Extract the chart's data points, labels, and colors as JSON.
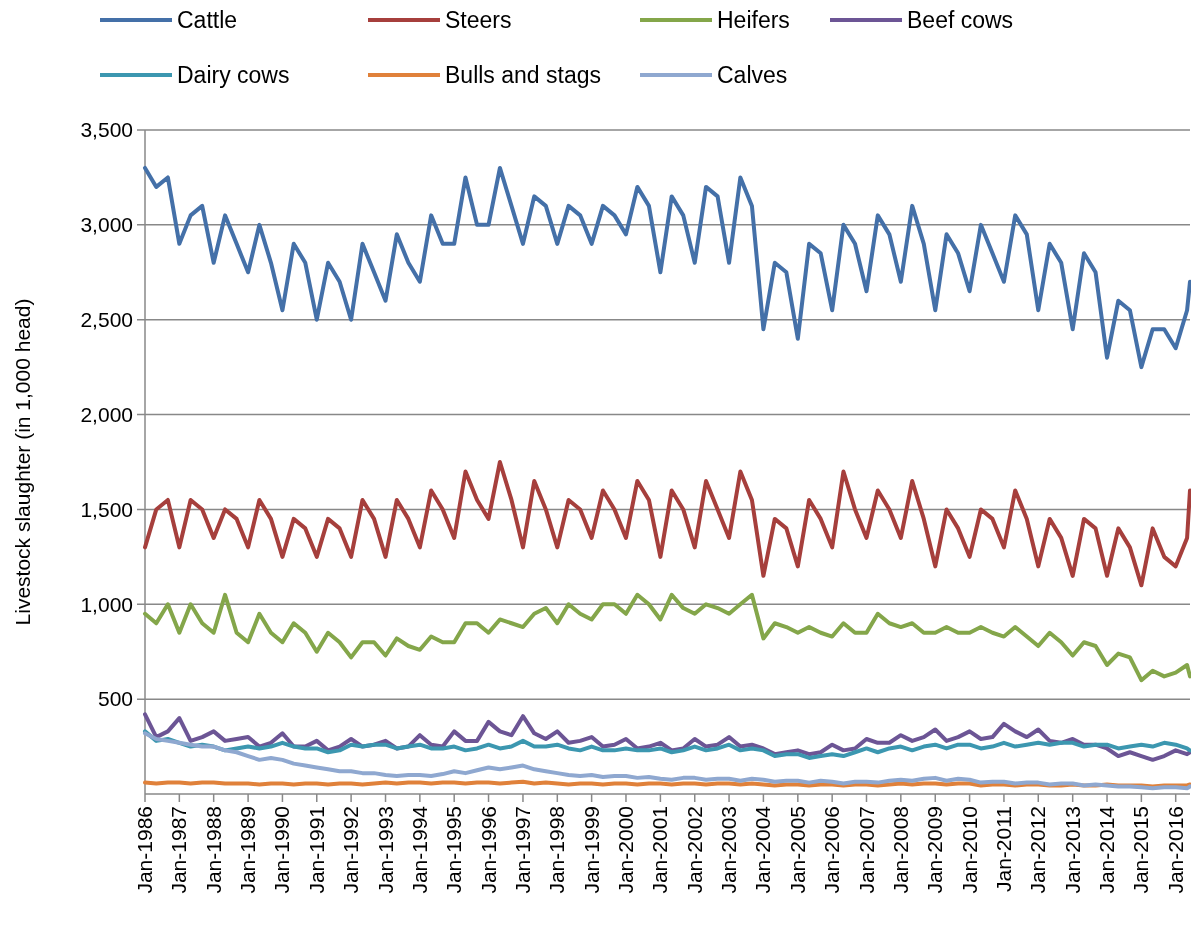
{
  "chart_data": {
    "type": "line",
    "ylabel": "Livestock slaughter (in 1,000 head)",
    "x": [
      "1986-01",
      "1986-05",
      "1986-09",
      "1987-01",
      "1987-05",
      "1987-09",
      "1988-01",
      "1988-05",
      "1988-09",
      "1989-01",
      "1989-05",
      "1989-09",
      "1990-01",
      "1990-05",
      "1990-09",
      "1991-01",
      "1991-05",
      "1991-09",
      "1992-01",
      "1992-05",
      "1992-09",
      "1993-01",
      "1993-05",
      "1993-09",
      "1994-01",
      "1994-05",
      "1994-09",
      "1995-01",
      "1995-05",
      "1995-09",
      "1996-01",
      "1996-05",
      "1996-09",
      "1997-01",
      "1997-05",
      "1997-09",
      "1998-01",
      "1998-05",
      "1998-09",
      "1999-01",
      "1999-05",
      "1999-09",
      "2000-01",
      "2000-05",
      "2000-09",
      "2001-01",
      "2001-05",
      "2001-09",
      "2002-01",
      "2002-05",
      "2002-09",
      "2003-01",
      "2003-05",
      "2003-09",
      "2004-01",
      "2004-05",
      "2004-09",
      "2005-01",
      "2005-05",
      "2005-09",
      "2006-01",
      "2006-05",
      "2006-09",
      "2007-01",
      "2007-05",
      "2007-09",
      "2008-01",
      "2008-05",
      "2008-09",
      "2009-01",
      "2009-05",
      "2009-09",
      "2010-01",
      "2010-05",
      "2010-09",
      "2011-01",
      "2011-05",
      "2011-09",
      "2012-01",
      "2012-05",
      "2012-09",
      "2013-01",
      "2013-05",
      "2013-09",
      "2014-01",
      "2014-05",
      "2014-09",
      "2015-01",
      "2015-05",
      "2015-09",
      "2016-01",
      "2016-05",
      "2016-06"
    ],
    "series": [
      {
        "name": "Cattle",
        "color": "#4470a8",
        "values": [
          3300,
          3200,
          3250,
          2900,
          3050,
          3100,
          2800,
          3050,
          2900,
          2750,
          3000,
          2800,
          2550,
          2900,
          2800,
          2500,
          2800,
          2700,
          2500,
          2900,
          2750,
          2600,
          2950,
          2800,
          2700,
          3050,
          2900,
          2900,
          3250,
          3000,
          3000,
          3300,
          3100,
          2900,
          3150,
          3100,
          2900,
          3100,
          3050,
          2900,
          3100,
          3050,
          2950,
          3200,
          3100,
          2750,
          3150,
          3050,
          2800,
          3200,
          3150,
          2800,
          3250,
          3100,
          2450,
          2800,
          2750,
          2400,
          2900,
          2850,
          2550,
          3000,
          2900,
          2650,
          3050,
          2950,
          2700,
          3100,
          2900,
          2550,
          2950,
          2850,
          2650,
          3000,
          2850,
          2700,
          3050,
          2950,
          2550,
          2900,
          2800,
          2450,
          2850,
          2750,
          2300,
          2600,
          2550,
          2250,
          2450,
          2450,
          2350,
          2550,
          2700
        ]
      },
      {
        "name": "Steers",
        "color": "#a63f3c",
        "values": [
          1300,
          1500,
          1550,
          1300,
          1550,
          1500,
          1350,
          1500,
          1450,
          1300,
          1550,
          1450,
          1250,
          1450,
          1400,
          1250,
          1450,
          1400,
          1250,
          1550,
          1450,
          1250,
          1550,
          1450,
          1300,
          1600,
          1500,
          1350,
          1700,
          1550,
          1450,
          1750,
          1550,
          1300,
          1650,
          1500,
          1300,
          1550,
          1500,
          1350,
          1600,
          1500,
          1350,
          1650,
          1550,
          1250,
          1600,
          1500,
          1300,
          1650,
          1500,
          1350,
          1700,
          1550,
          1150,
          1450,
          1400,
          1200,
          1550,
          1450,
          1300,
          1700,
          1500,
          1350,
          1600,
          1500,
          1350,
          1650,
          1450,
          1200,
          1500,
          1400,
          1250,
          1500,
          1450,
          1300,
          1600,
          1450,
          1200,
          1450,
          1350,
          1150,
          1450,
          1400,
          1150,
          1400,
          1300,
          1100,
          1400,
          1250,
          1200,
          1350,
          1600
        ]
      },
      {
        "name": "Heifers",
        "color": "#84a64a",
        "values": [
          950,
          900,
          1000,
          850,
          1000,
          900,
          850,
          1050,
          850,
          800,
          950,
          850,
          800,
          900,
          850,
          750,
          850,
          800,
          720,
          800,
          800,
          730,
          820,
          780,
          760,
          830,
          800,
          800,
          900,
          900,
          850,
          920,
          900,
          880,
          950,
          980,
          900,
          1000,
          950,
          920,
          1000,
          1000,
          950,
          1050,
          1000,
          920,
          1050,
          980,
          950,
          1000,
          980,
          950,
          1000,
          1050,
          820,
          900,
          880,
          850,
          880,
          850,
          830,
          900,
          850,
          850,
          950,
          900,
          880,
          900,
          850,
          850,
          880,
          850,
          850,
          880,
          850,
          830,
          880,
          830,
          780,
          850,
          800,
          730,
          800,
          780,
          680,
          740,
          720,
          600,
          650,
          620,
          640,
          680,
          620
        ]
      },
      {
        "name": "Beef cows",
        "color": "#6c5595",
        "values": [
          420,
          300,
          330,
          400,
          280,
          300,
          330,
          280,
          290,
          300,
          250,
          270,
          320,
          250,
          250,
          280,
          230,
          250,
          290,
          250,
          260,
          280,
          240,
          250,
          310,
          260,
          250,
          330,
          280,
          280,
          380,
          330,
          310,
          410,
          320,
          290,
          330,
          270,
          280,
          300,
          250,
          260,
          290,
          240,
          250,
          270,
          230,
          240,
          290,
          250,
          260,
          300,
          250,
          260,
          240,
          210,
          220,
          230,
          210,
          220,
          260,
          230,
          240,
          290,
          270,
          270,
          310,
          280,
          300,
          340,
          280,
          300,
          330,
          290,
          300,
          370,
          330,
          300,
          340,
          280,
          270,
          290,
          260,
          260,
          240,
          200,
          220,
          200,
          180,
          200,
          230,
          210,
          220
        ]
      },
      {
        "name": "Dairy cows",
        "color": "#3c97b0",
        "values": [
          330,
          280,
          290,
          270,
          250,
          260,
          250,
          230,
          240,
          250,
          240,
          250,
          270,
          250,
          240,
          240,
          220,
          230,
          260,
          250,
          260,
          260,
          240,
          250,
          260,
          240,
          240,
          250,
          230,
          240,
          260,
          240,
          250,
          280,
          250,
          250,
          260,
          240,
          230,
          250,
          230,
          230,
          240,
          230,
          230,
          240,
          220,
          230,
          250,
          230,
          240,
          260,
          230,
          240,
          230,
          200,
          210,
          210,
          190,
          200,
          210,
          200,
          220,
          240,
          220,
          240,
          250,
          230,
          250,
          260,
          240,
          260,
          260,
          240,
          250,
          270,
          250,
          260,
          270,
          260,
          270,
          270,
          250,
          260,
          260,
          240,
          250,
          260,
          250,
          270,
          260,
          240,
          230
        ]
      },
      {
        "name": "Bulls and stags",
        "color": "#e0813a",
        "values": [
          60,
          55,
          60,
          60,
          55,
          60,
          60,
          55,
          55,
          55,
          50,
          55,
          55,
          50,
          55,
          55,
          50,
          55,
          55,
          50,
          55,
          60,
          55,
          60,
          60,
          55,
          60,
          60,
          55,
          60,
          60,
          55,
          60,
          65,
          55,
          60,
          55,
          50,
          55,
          55,
          50,
          55,
          55,
          50,
          55,
          55,
          50,
          55,
          55,
          50,
          55,
          55,
          50,
          55,
          50,
          45,
          50,
          50,
          45,
          50,
          50,
          45,
          50,
          50,
          45,
          50,
          55,
          50,
          55,
          55,
          50,
          55,
          55,
          45,
          50,
          50,
          45,
          50,
          50,
          45,
          45,
          50,
          45,
          45,
          50,
          45,
          45,
          45,
          40,
          45,
          45,
          45,
          50
        ]
      },
      {
        "name": "Calves",
        "color": "#8fa8d0",
        "values": [
          320,
          290,
          280,
          270,
          260,
          250,
          250,
          230,
          220,
          200,
          180,
          190,
          180,
          160,
          150,
          140,
          130,
          120,
          120,
          110,
          110,
          100,
          95,
          100,
          100,
          95,
          105,
          120,
          110,
          125,
          140,
          130,
          140,
          150,
          130,
          120,
          110,
          100,
          95,
          100,
          90,
          95,
          95,
          85,
          90,
          80,
          75,
          85,
          85,
          75,
          80,
          80,
          70,
          80,
          75,
          65,
          70,
          70,
          60,
          70,
          65,
          55,
          65,
          65,
          60,
          70,
          75,
          70,
          80,
          85,
          70,
          80,
          75,
          60,
          65,
          65,
          55,
          60,
          60,
          50,
          55,
          55,
          45,
          50,
          45,
          40,
          40,
          35,
          30,
          35,
          35,
          30,
          40
        ]
      }
    ],
    "xlim": [
      "1986-01",
      "2016-06"
    ],
    "xticks": [
      {
        "value": "1986-01",
        "label": "Jan-1986"
      },
      {
        "value": "1987-01",
        "label": "Jan-1987"
      },
      {
        "value": "1988-01",
        "label": "Jan-1988"
      },
      {
        "value": "1989-01",
        "label": "Jan-1989"
      },
      {
        "value": "1990-01",
        "label": "Jan-1990"
      },
      {
        "value": "1991-01",
        "label": "Jan-1991"
      },
      {
        "value": "1992-01",
        "label": "Jan-1992"
      },
      {
        "value": "1993-01",
        "label": "Jan-1993"
      },
      {
        "value": "1994-01",
        "label": "Jan-1994"
      },
      {
        "value": "1995-01",
        "label": "Jan-1995"
      },
      {
        "value": "1996-01",
        "label": "Jan-1996"
      },
      {
        "value": "1997-01",
        "label": "Jan-1997"
      },
      {
        "value": "1998-01",
        "label": "Jan-1998"
      },
      {
        "value": "1999-01",
        "label": "Jan-1999"
      },
      {
        "value": "2000-01",
        "label": "Jan-2000"
      },
      {
        "value": "2001-01",
        "label": "Jan-2001"
      },
      {
        "value": "2002-01",
        "label": "Jan-2002"
      },
      {
        "value": "2003-01",
        "label": "Jan-2003"
      },
      {
        "value": "2004-01",
        "label": "Jan-2004"
      },
      {
        "value": "2005-01",
        "label": "Jan-2005"
      },
      {
        "value": "2006-01",
        "label": "Jan-2006"
      },
      {
        "value": "2007-01",
        "label": "Jan-2007"
      },
      {
        "value": "2008-01",
        "label": "Jan-2008"
      },
      {
        "value": "2009-01",
        "label": "Jan-2009"
      },
      {
        "value": "2010-01",
        "label": "Jan-2010"
      },
      {
        "value": "2011-01",
        "label": "Jan-2011"
      },
      {
        "value": "2012-01",
        "label": "Jan-2012"
      },
      {
        "value": "2013-01",
        "label": "Jan-2013"
      },
      {
        "value": "2014-01",
        "label": "Jan-2014"
      },
      {
        "value": "2015-01",
        "label": "Jan-2015"
      },
      {
        "value": "2016-01",
        "label": "Jan-2016"
      }
    ],
    "ylim": [
      0,
      3500
    ],
    "yticks": [
      {
        "value": 500,
        "label": "500"
      },
      {
        "value": 1000,
        "label": "1,000"
      },
      {
        "value": 1500,
        "label": "1,500"
      },
      {
        "value": 2000,
        "label": "2,000"
      },
      {
        "value": 2500,
        "label": "2,500"
      },
      {
        "value": 3000,
        "label": "3,000"
      },
      {
        "value": 3500,
        "label": "3,500"
      }
    ],
    "grid": "y",
    "legend": "top",
    "marker": "none",
    "line_style": "solid"
  }
}
